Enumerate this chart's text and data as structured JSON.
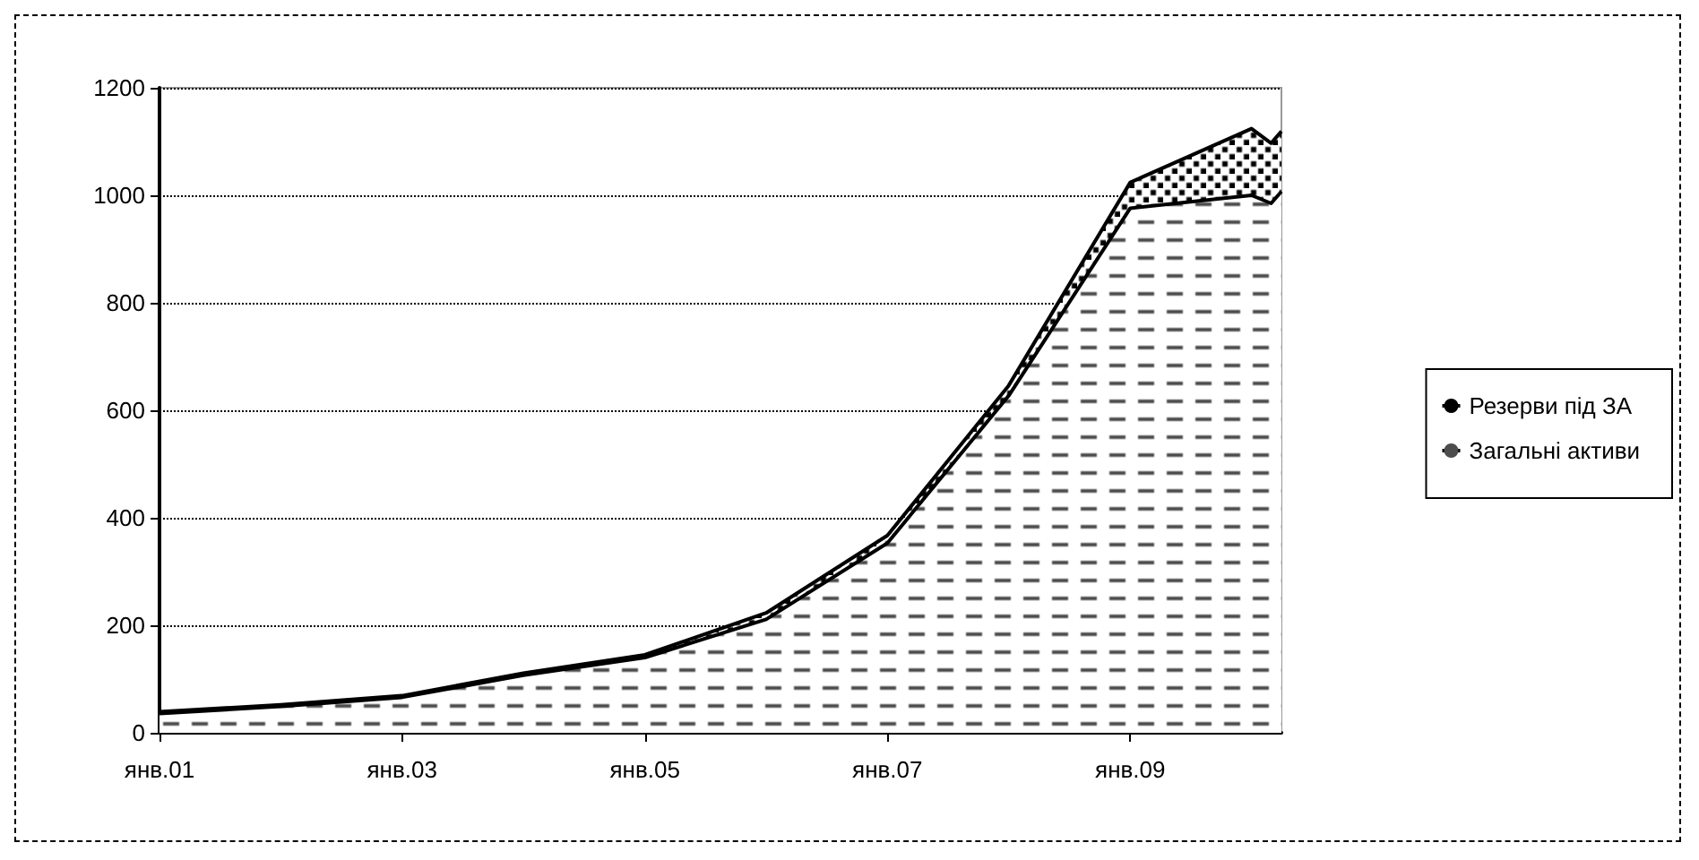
{
  "chart_data": {
    "type": "area",
    "stacked": true,
    "x": [
      "2001-01",
      "2002-01",
      "2003-01",
      "2004-01",
      "2005-01",
      "2006-01",
      "2007-01",
      "2008-01",
      "2009-01",
      "2010-01",
      "2010-03",
      "2010-04"
    ],
    "series": [
      {
        "name": "Загальні активи",
        "color": "#4d4d4d",
        "values": [
          36,
          49,
          66,
          107,
          140,
          211,
          353,
          627,
          976,
          1000,
          985,
          1007
        ]
      },
      {
        "name": "Резерви під ЗА",
        "color": "#000000",
        "values": [
          3,
          3,
          3,
          4,
          5,
          12,
          14,
          19,
          48,
          124,
          112,
          112
        ]
      }
    ],
    "xlim": [
      "2001-01",
      "2010-04"
    ],
    "xticks": [
      {
        "value": "2001-01",
        "label": "янв.01"
      },
      {
        "value": "2003-01",
        "label": "янв.03"
      },
      {
        "value": "2005-01",
        "label": "янв.05"
      },
      {
        "value": "2007-01",
        "label": "янв.07"
      },
      {
        "value": "2009-01",
        "label": "янв.09"
      }
    ],
    "ylim": [
      0,
      1200
    ],
    "yticks": [
      0,
      200,
      400,
      600,
      800,
      1000,
      1200
    ],
    "grid": "y",
    "legend": "right"
  }
}
